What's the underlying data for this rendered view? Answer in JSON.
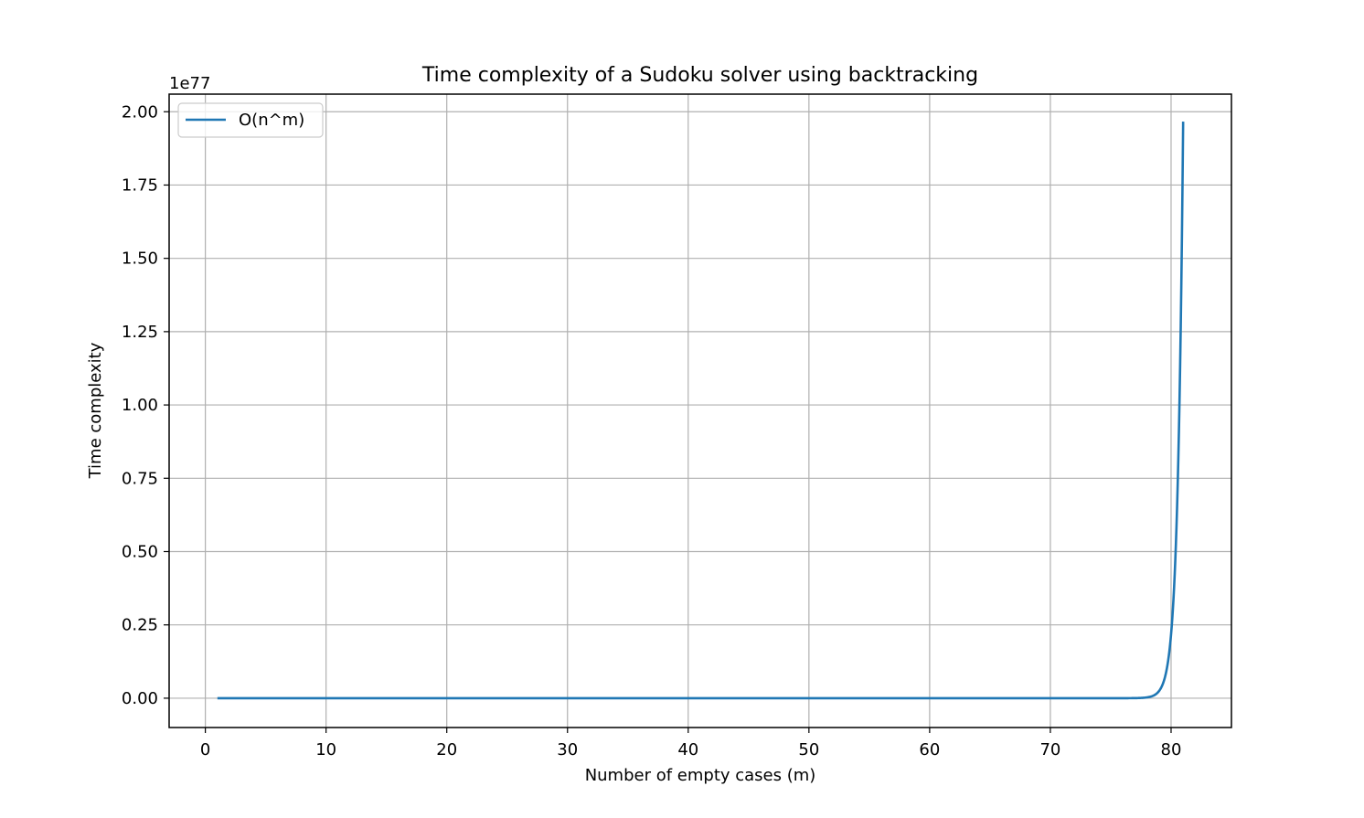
{
  "chart_data": {
    "type": "line",
    "title": "Time complexity of a Sudoku solver using backtracking",
    "xlabel": "Number of empty cases (m)",
    "ylabel": "Time complexity",
    "y_offset_label": "1e77",
    "xlim": [
      -3,
      85
    ],
    "ylim": [
      -0.1,
      2.06
    ],
    "x_ticks": [
      0,
      10,
      20,
      30,
      40,
      50,
      60,
      70,
      80
    ],
    "x_tick_labels": [
      "0",
      "10",
      "20",
      "30",
      "40",
      "50",
      "60",
      "70",
      "80"
    ],
    "y_ticks": [
      0,
      0.25,
      0.5,
      0.75,
      1.0,
      1.25,
      1.5,
      1.75,
      2.0
    ],
    "y_tick_labels": [
      "0.00",
      "0.25",
      "0.50",
      "0.75",
      "1.00",
      "1.25",
      "1.50",
      "1.75",
      "2.00"
    ],
    "grid": true,
    "legend_position": "top-left",
    "series": [
      {
        "name": "O(n^m)",
        "color": "#1f77b4",
        "function": "9^m / 1e77",
        "x_range": [
          1,
          81
        ]
      }
    ]
  }
}
